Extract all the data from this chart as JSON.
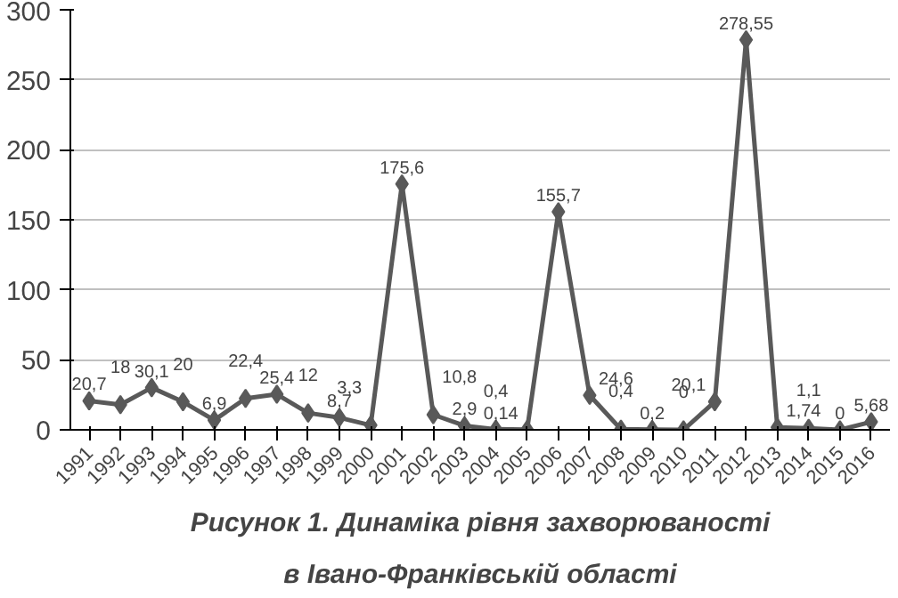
{
  "chart_data": {
    "type": "line",
    "title": "Рисунок 1. Динаміка рівня захворюваності\nв Івано-Франківській області",
    "categories": [
      "1991",
      "1992",
      "1993",
      "1994",
      "1995",
      "1996",
      "1997",
      "1998",
      "1999",
      "2000",
      "2001",
      "2002",
      "2003",
      "2004",
      "2005",
      "2006",
      "2007",
      "2008",
      "2009",
      "2010",
      "2011",
      "2012",
      "2013",
      "2014",
      "2015",
      "2016"
    ],
    "series": [
      {
        "color": "#595959",
        "values": [
          20.7,
          18,
          30.1,
          20,
          6.9,
          22.4,
          25.4,
          12,
          8.7,
          3.3,
          175.6,
          10.8,
          2.9,
          0.4,
          0.14,
          155.7,
          24.6,
          0.4,
          0.2,
          0,
          20.1,
          278.55,
          1.74,
          1.1,
          0,
          5.68
        ],
        "value_labels": [
          "20,7",
          "18",
          "30,1",
          "20",
          "6,9",
          "22,4",
          "25,4",
          "12",
          "8,7",
          "3,3",
          "175,6",
          "10,8",
          "2,9",
          "0,4",
          "0,14",
          "155,7",
          "24,6",
          "0,4",
          "0,2",
          "0",
          "20,1",
          "278,55",
          "1,74",
          "1,1",
          "0",
          "5,68"
        ]
      }
    ],
    "ylim": [
      0,
      300
    ],
    "yticks": [
      0,
      50,
      100,
      150,
      200,
      250,
      300
    ],
    "grid": "y",
    "marker": "diamond",
    "line_style": "solid"
  }
}
